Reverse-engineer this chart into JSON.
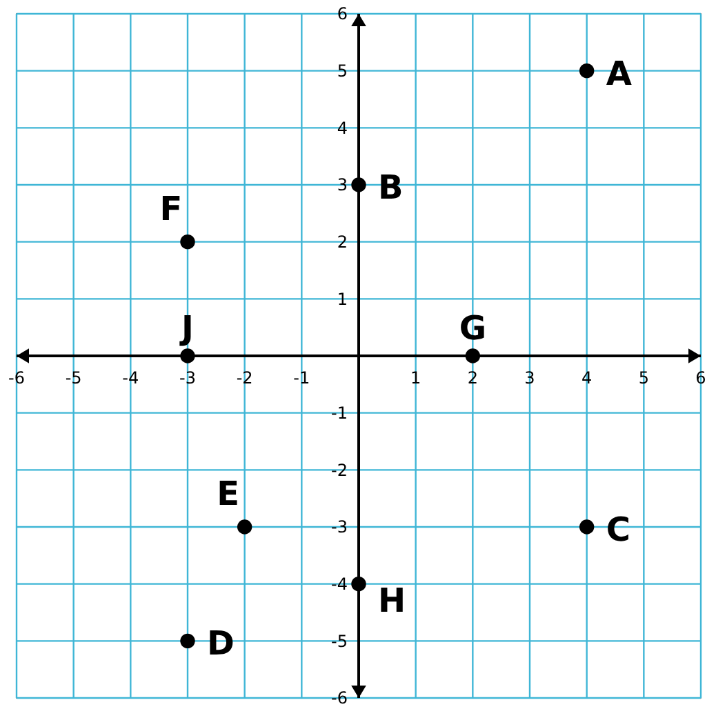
{
  "chart_data": {
    "type": "scatter",
    "x": [
      4,
      0,
      4,
      -3,
      -2,
      -3,
      2,
      0,
      -3
    ],
    "values": [
      5,
      3,
      -3,
      -5,
      -3,
      2,
      0,
      -4,
      0
    ],
    "color": "#000000",
    "marker": "circle",
    "xlim": [
      -6,
      6
    ],
    "ylim": [
      -6,
      6
    ],
    "xticks": [
      -6,
      -5,
      -4,
      -3,
      -2,
      -1,
      1,
      2,
      3,
      4,
      5,
      6
    ],
    "yticks": [
      -6,
      -5,
      -4,
      -3,
      -2,
      -1,
      1,
      2,
      3,
      4,
      5,
      6
    ],
    "grid": true,
    "annotations": [
      {
        "text": "A",
        "x": 4,
        "y": 5
      },
      {
        "text": "B",
        "x": 0,
        "y": 3
      },
      {
        "text": "C",
        "x": 4,
        "y": -3
      },
      {
        "text": "D",
        "x": -3,
        "y": -5
      },
      {
        "text": "E",
        "x": -2,
        "y": -3
      },
      {
        "text": "F",
        "x": -3,
        "y": 2
      },
      {
        "text": "G",
        "x": 2,
        "y": 0
      },
      {
        "text": "H",
        "x": 0,
        "y": -4
      },
      {
        "text": "J",
        "x": -3,
        "y": 0
      }
    ]
  }
}
